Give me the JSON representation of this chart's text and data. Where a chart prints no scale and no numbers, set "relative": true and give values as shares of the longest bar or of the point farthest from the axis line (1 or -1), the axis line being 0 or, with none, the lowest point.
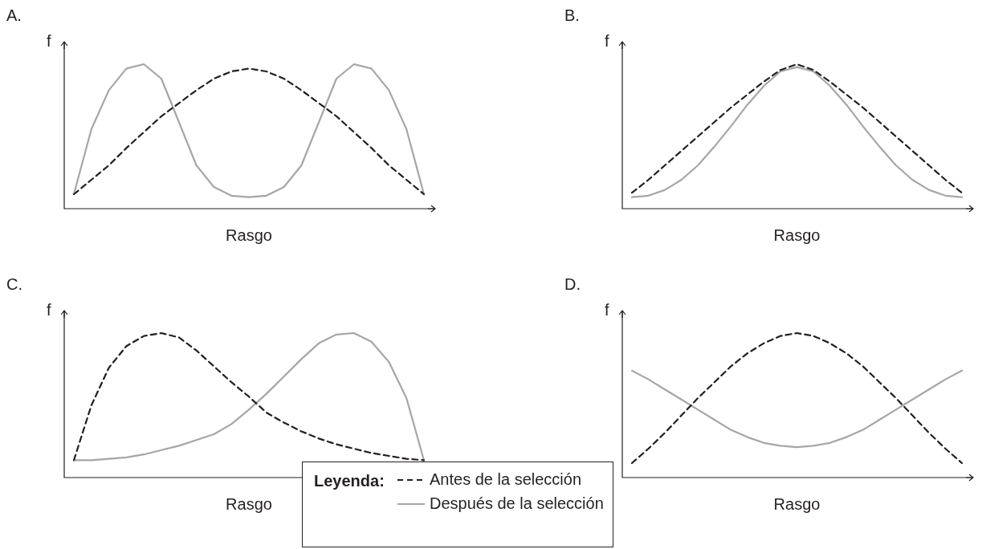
{
  "chart_data": [
    {
      "type": "line",
      "title": "A.",
      "xlabel": "Rasgo",
      "ylabel": "f",
      "relative": true,
      "marker": "none",
      "grid": false,
      "categories": [
        null,
        null,
        null,
        null,
        null,
        null,
        null,
        null,
        null,
        null,
        null,
        null,
        null,
        null,
        null,
        null,
        null,
        null,
        null,
        null,
        null
      ],
      "series": [
        {
          "color": "#231f20",
          "line_style": "dashed",
          "values": [
            0.1,
            0.2,
            0.3,
            0.42,
            0.53,
            0.64,
            0.73,
            0.82,
            0.9,
            0.95,
            0.97,
            0.95,
            0.9,
            0.82,
            0.73,
            0.64,
            0.53,
            0.42,
            0.3,
            0.2,
            0.1
          ]
        },
        {
          "color": "#a6a6a6",
          "line_style": "solid",
          "values": [
            0.1,
            0.55,
            0.82,
            0.97,
            1.0,
            0.9,
            0.6,
            0.3,
            0.15,
            0.09,
            0.08,
            0.09,
            0.15,
            0.3,
            0.6,
            0.9,
            1.0,
            0.97,
            0.82,
            0.55,
            0.1
          ]
        }
      ]
    },
    {
      "type": "line",
      "title": "B.",
      "xlabel": "Rasgo",
      "ylabel": "f",
      "relative": true,
      "marker": "none",
      "grid": false,
      "categories": [
        null,
        null,
        null,
        null,
        null,
        null,
        null,
        null,
        null,
        null,
        null,
        null,
        null,
        null,
        null,
        null,
        null,
        null,
        null,
        null,
        null
      ],
      "series": [
        {
          "color": "#231f20",
          "line_style": "dashed",
          "values": [
            0.11,
            0.2,
            0.3,
            0.4,
            0.5,
            0.6,
            0.7,
            0.79,
            0.88,
            0.96,
            1.0,
            0.96,
            0.88,
            0.79,
            0.7,
            0.6,
            0.5,
            0.4,
            0.3,
            0.2,
            0.11
          ]
        },
        {
          "color": "#a6a6a6",
          "line_style": "solid",
          "values": [
            0.08,
            0.09,
            0.13,
            0.2,
            0.3,
            0.43,
            0.57,
            0.72,
            0.85,
            0.95,
            0.98,
            0.95,
            0.85,
            0.72,
            0.57,
            0.43,
            0.3,
            0.2,
            0.13,
            0.09,
            0.08
          ]
        }
      ]
    },
    {
      "type": "line",
      "title": "C.",
      "xlabel": "Rasgo",
      "ylabel": "f",
      "relative": true,
      "marker": "none",
      "grid": false,
      "categories": [
        null,
        null,
        null,
        null,
        null,
        null,
        null,
        null,
        null,
        null,
        null,
        null,
        null,
        null,
        null,
        null,
        null,
        null,
        null,
        null,
        null
      ],
      "series": [
        {
          "color": "#231f20",
          "line_style": "dashed",
          "values": [
            0.12,
            0.5,
            0.76,
            0.91,
            0.98,
            1.0,
            0.97,
            0.88,
            0.77,
            0.66,
            0.56,
            0.45,
            0.38,
            0.32,
            0.27,
            0.23,
            0.2,
            0.17,
            0.15,
            0.13,
            0.12
          ]
        },
        {
          "color": "#a6a6a6",
          "line_style": "solid",
          "values": [
            0.12,
            0.12,
            0.13,
            0.14,
            0.16,
            0.19,
            0.22,
            0.26,
            0.3,
            0.37,
            0.47,
            0.58,
            0.7,
            0.82,
            0.93,
            0.99,
            1.0,
            0.94,
            0.8,
            0.55,
            0.12
          ]
        }
      ]
    },
    {
      "type": "line",
      "title": "D.",
      "xlabel": "Rasgo",
      "ylabel": "f",
      "relative": true,
      "marker": "none",
      "grid": false,
      "legend": "bottom",
      "legend_title": "Leyenda:",
      "categories": [
        null,
        null,
        null,
        null,
        null,
        null,
        null,
        null,
        null,
        null,
        null,
        null,
        null,
        null,
        null,
        null,
        null,
        null,
        null,
        null,
        null
      ],
      "series": [
        {
          "name": "Antes de la selección",
          "color": "#231f20",
          "line_style": "dashed",
          "values": [
            0.1,
            0.2,
            0.31,
            0.43,
            0.55,
            0.66,
            0.77,
            0.86,
            0.93,
            0.98,
            1.0,
            0.98,
            0.93,
            0.86,
            0.77,
            0.66,
            0.55,
            0.43,
            0.31,
            0.2,
            0.1
          ]
        },
        {
          "name": "Después de la selección",
          "color": "#a6a6a6",
          "line_style": "solid",
          "values": [
            0.74,
            0.68,
            0.61,
            0.54,
            0.47,
            0.4,
            0.33,
            0.28,
            0.24,
            0.22,
            0.21,
            0.22,
            0.24,
            0.28,
            0.33,
            0.4,
            0.47,
            0.54,
            0.61,
            0.68,
            0.74
          ]
        }
      ]
    }
  ]
}
